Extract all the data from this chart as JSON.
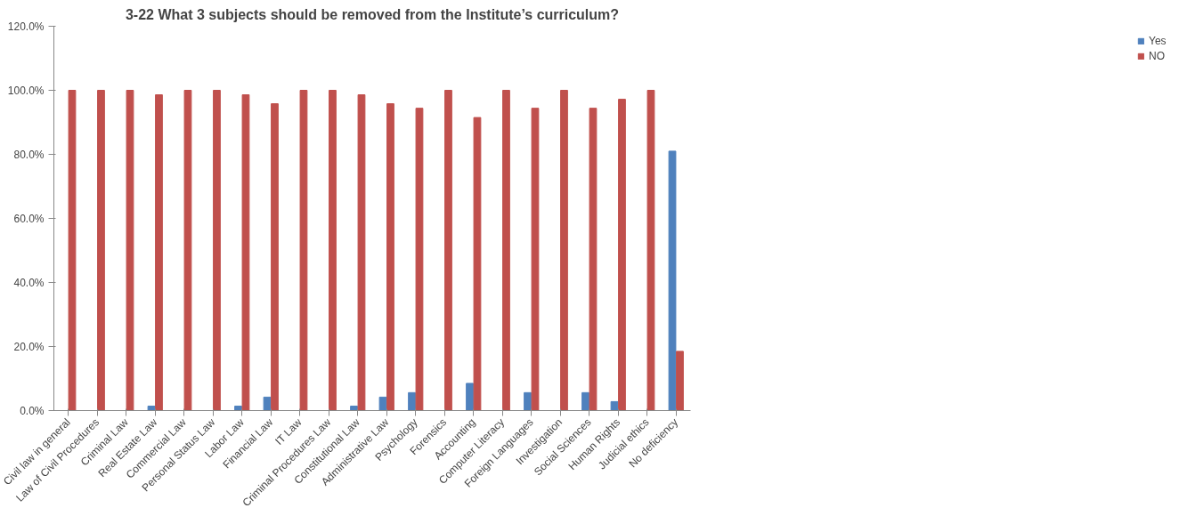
{
  "chart_data": {
    "type": "bar",
    "title": "3-22 What 3 subjects should be removed from the Institute’s curriculum?",
    "categories": [
      "Civil law in general",
      "Law of Civil Procedures",
      "Criminal Law",
      "Real Estate Law",
      "Commercial Law",
      "Personal Status Law",
      "Labor Law",
      "Financial Law",
      "IT Law",
      "Criminal Procedures Law",
      "Constitutional Law",
      "Administrative Law",
      "Psychology",
      "Forensics",
      "Accounting",
      "Computer Literacy",
      "Foreign Languages",
      "Investigation",
      "Social Sciences",
      "Human Rights",
      "Judicial ethics",
      "No deficiency"
    ],
    "series": [
      {
        "name": "Yes",
        "color": "#4f81bd",
        "values": [
          0,
          0,
          0,
          1.4,
          0,
          0,
          1.4,
          4.2,
          0,
          0,
          1.4,
          4.2,
          5.6,
          0,
          8.5,
          0,
          5.6,
          0,
          5.6,
          2.8,
          0,
          81
        ]
      },
      {
        "name": "NO",
        "color": "#c0504d",
        "values": [
          100,
          100,
          100,
          98.6,
          100,
          100,
          98.6,
          95.8,
          100,
          100,
          98.6,
          95.8,
          94.4,
          100,
          91.5,
          100,
          94.4,
          100,
          94.4,
          97.2,
          100,
          18.5
        ]
      }
    ],
    "ylim": [
      0,
      120
    ],
    "yticks": [
      {
        "value": 0,
        "label": "0.0%"
      },
      {
        "value": 20,
        "label": "20.0%"
      },
      {
        "value": 40,
        "label": "40.0%"
      },
      {
        "value": 60,
        "label": "60.0%"
      },
      {
        "value": 80,
        "label": "80.0%"
      },
      {
        "value": 100,
        "label": "100.0%"
      },
      {
        "value": 120,
        "label": "120.0%"
      }
    ],
    "grid": false,
    "legend": "right"
  }
}
